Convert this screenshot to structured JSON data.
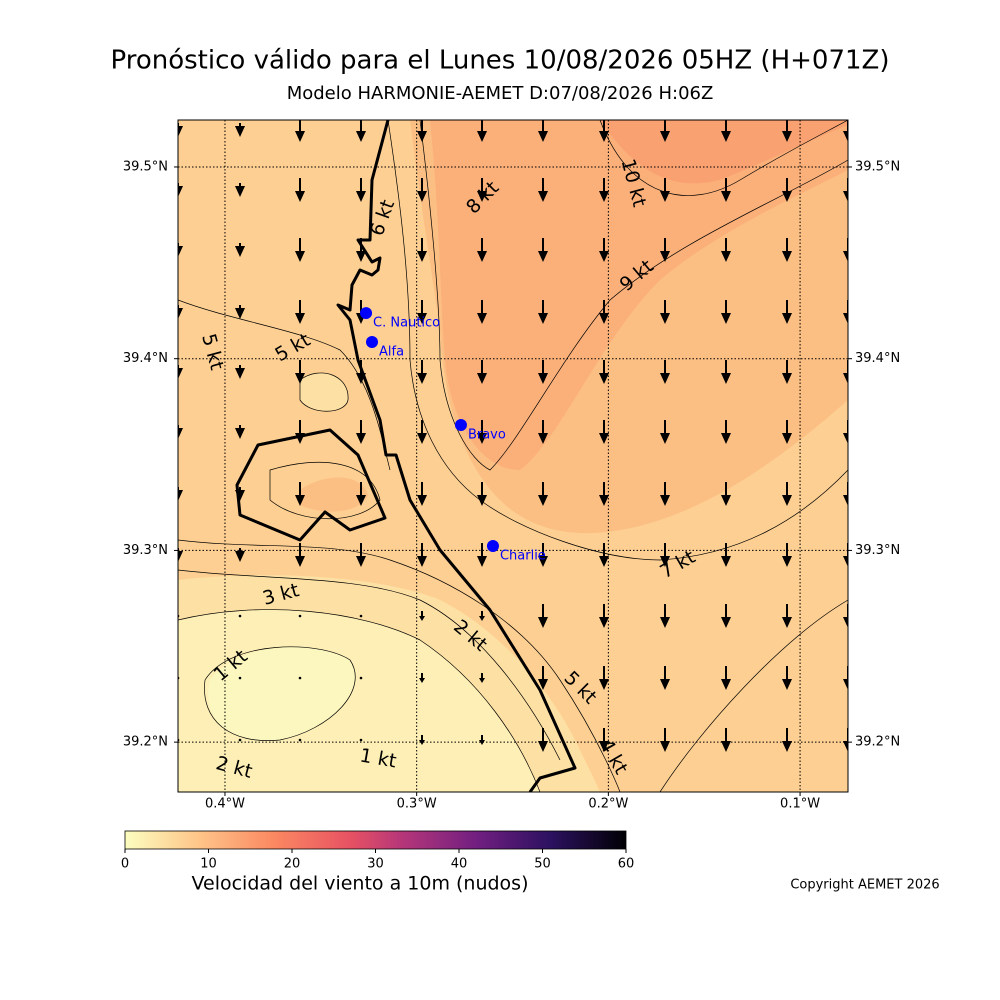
{
  "title": "Pronóstico válido para el Lunes 10/08/2026 05HZ (H+071Z)",
  "subtitle": "Modelo HARMONIE-AEMET D:07/08/2026 H:06Z",
  "chart_data": {
    "type": "map",
    "xlim": [
      -0.4245,
      -0.075
    ],
    "ylim": [
      39.174,
      39.5245
    ],
    "xticks": [
      {
        "value": -0.4,
        "label": "0.4°W"
      },
      {
        "value": -0.3,
        "label": "0.3°W"
      },
      {
        "value": -0.2,
        "label": "0.2°W"
      },
      {
        "value": -0.1,
        "label": "0.1°W"
      }
    ],
    "yticks": [
      {
        "value": 39.2,
        "label": "39.2°N"
      },
      {
        "value": 39.3,
        "label": "39.3°N"
      },
      {
        "value": 39.4,
        "label": "39.4°N"
      },
      {
        "value": 39.5,
        "label": "39.5°N"
      }
    ],
    "grid": true,
    "points": {
      "names": [
        "C. Nautico",
        "Alfa",
        "Bravo",
        "Charlie"
      ],
      "lon": [
        -0.3264,
        -0.3233,
        -0.2769,
        -0.2602
      ],
      "lat": [
        39.4238,
        39.4087,
        39.3654,
        39.3023
      ],
      "color": "#0000ff"
    },
    "contour_labels": [
      "6 kt",
      "8 kt",
      "10 kt",
      "9 kt",
      "5 kt",
      "5 kt",
      "7 kt",
      "3 kt",
      "2 kt",
      "5 kt",
      "1 kt",
      "4 kt",
      "2 kt",
      "1 kt"
    ],
    "colorbar": {
      "label": "Velocidad del viento a 10m (nudos)",
      "lim": [
        0,
        60
      ],
      "ticks": [
        0,
        10,
        20,
        30,
        40,
        50,
        60
      ],
      "colormap": "magma_r"
    }
  },
  "copyright": "Copyright AEMET 2026"
}
